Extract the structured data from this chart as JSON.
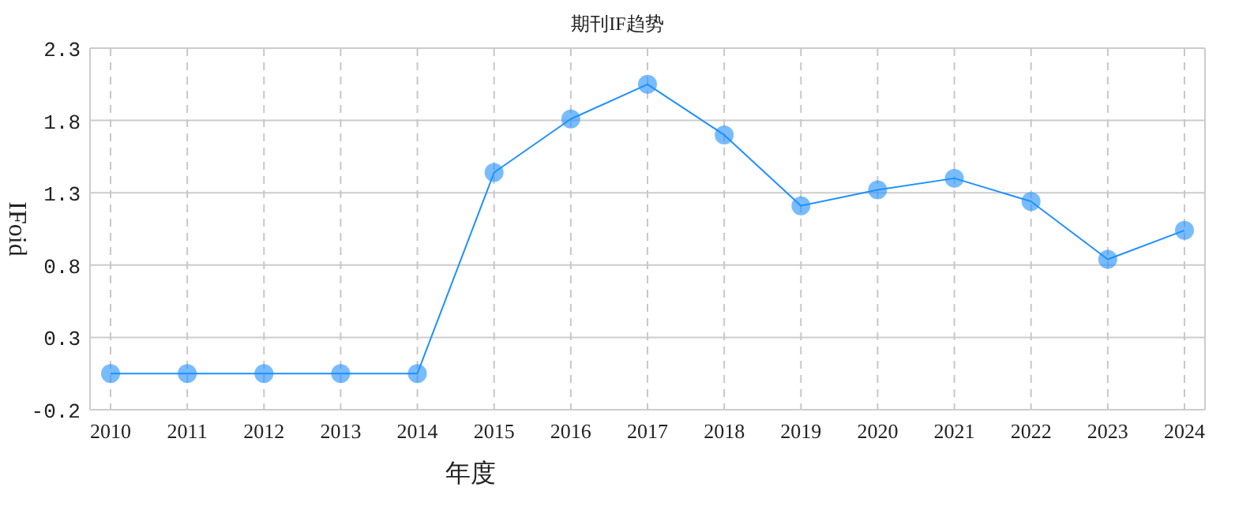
{
  "chart_data": {
    "type": "line",
    "title": "期刊IF趋势",
    "xlabel": "年度",
    "ylabel": "IFoid",
    "categories": [
      "2010",
      "2011",
      "2012",
      "2013",
      "2014",
      "2015",
      "2016",
      "2017",
      "2018",
      "2019",
      "2020",
      "2021",
      "2022",
      "2023",
      "2024"
    ],
    "series": [
      {
        "color": "#1e90ff",
        "values": [
          0.05,
          0.05,
          0.05,
          0.05,
          0.05,
          1.44,
          1.81,
          2.05,
          1.7,
          1.21,
          1.32,
          1.4,
          1.24,
          0.84,
          1.04
        ]
      }
    ],
    "ylim": [
      -0.2,
      2.3
    ],
    "yticks": [
      -0.2,
      0.3,
      0.8,
      1.3,
      1.8,
      2.3
    ],
    "grid": true,
    "marker": "circle"
  }
}
